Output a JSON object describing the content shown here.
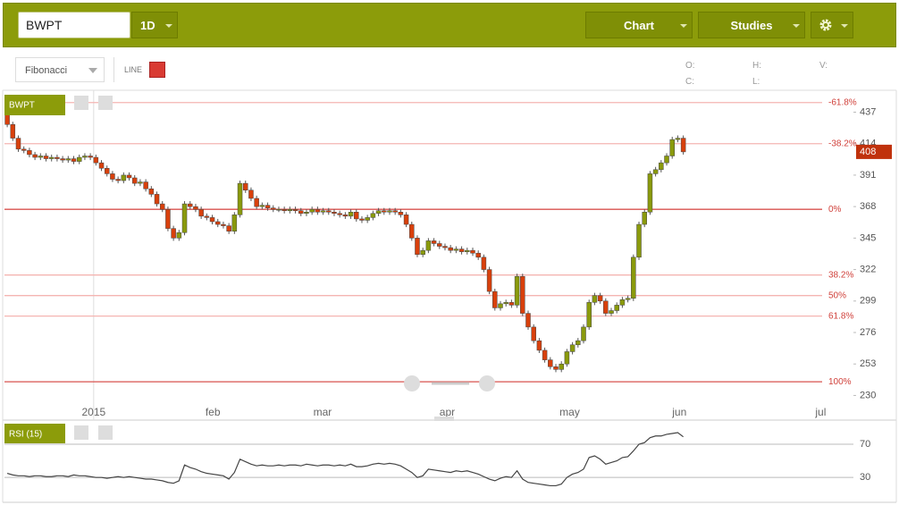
{
  "toolbar": {
    "symbol": "BWPT",
    "interval": "1D",
    "chart": "Chart",
    "studies": "Studies",
    "drawing_tool": "Fibonacci",
    "line_label": "LINE",
    "ohlc_labels": [
      "O:",
      "H:",
      "V:",
      "C:",
      "L:"
    ]
  },
  "chart_data": {
    "type": "candlestick",
    "symbol": "BWPT",
    "xlim": [
      -0.5,
      152.7
    ],
    "xticks": [
      {
        "value": 15.6,
        "label": "2015"
      },
      {
        "value": 37.1,
        "label": "feb"
      },
      {
        "value": 56.9,
        "label": "mar"
      },
      {
        "value": 79.4,
        "label": "apr"
      },
      {
        "value": 101.5,
        "label": "may"
      },
      {
        "value": 121.3,
        "label": "jun"
      },
      {
        "value": 146.8,
        "label": "jul"
      }
    ],
    "ylim": [
      212,
      453
    ],
    "yticks": [
      437,
      414,
      391,
      368,
      345,
      322,
      299,
      276,
      253,
      230
    ],
    "up_color": "#8a9a0c",
    "down_color": "#d8400c",
    "fibonacci": [
      {
        "value": 444,
        "label": "-61.8%"
      },
      {
        "value": 414,
        "label": "-38.2%"
      },
      {
        "value": 366,
        "label": "0%"
      },
      {
        "value": 318,
        "label": "38.2%"
      },
      {
        "value": 303,
        "label": "50%"
      },
      {
        "value": 288,
        "label": "61.8%"
      },
      {
        "value": 240,
        "label": "100%"
      }
    ],
    "open": [
      437,
      428,
      418,
      410,
      409,
      406,
      404,
      405,
      403,
      404,
      403,
      402,
      403,
      401,
      404,
      405,
      404,
      400,
      396,
      392,
      388,
      387,
      391,
      389,
      385,
      386,
      381,
      377,
      370,
      366,
      352,
      345,
      349,
      370,
      368,
      366,
      361,
      360,
      357,
      355,
      354,
      350,
      362,
      385,
      380,
      374,
      368,
      369,
      367,
      366,
      366,
      365,
      366,
      365,
      363,
      364,
      366,
      364,
      365,
      364,
      363,
      362,
      361,
      364,
      359,
      358,
      360,
      363,
      365,
      364,
      365,
      364,
      362,
      355,
      345,
      333,
      336,
      343,
      341,
      339,
      338,
      336,
      337,
      335,
      336,
      334,
      331,
      322,
      306,
      294,
      297,
      298,
      296,
      317,
      290,
      280,
      270,
      263,
      256,
      251,
      249,
      253,
      262,
      267,
      270,
      280,
      298,
      303,
      299,
      290,
      292,
      296,
      300,
      301,
      331,
      355,
      364,
      392,
      395,
      400,
      405,
      417,
      418
    ],
    "high": [
      439,
      430,
      420,
      412,
      411,
      408,
      407,
      407,
      406,
      406,
      405,
      405,
      405,
      406,
      407,
      407,
      406,
      402,
      398,
      394,
      390,
      393,
      393,
      391,
      388,
      388,
      383,
      379,
      372,
      368,
      354,
      351,
      372,
      372,
      370,
      368,
      363,
      362,
      359,
      357,
      356,
      364,
      387,
      387,
      382,
      376,
      371,
      371,
      369,
      368,
      368,
      368,
      368,
      367,
      366,
      368,
      368,
      367,
      367,
      366,
      365,
      364,
      366,
      366,
      361,
      362,
      365,
      367,
      367,
      367,
      367,
      366,
      364,
      357,
      347,
      338,
      345,
      345,
      343,
      341,
      340,
      339,
      339,
      338,
      338,
      336,
      333,
      324,
      308,
      299,
      300,
      300,
      319,
      319,
      292,
      282,
      272,
      265,
      258,
      253,
      255,
      264,
      269,
      272,
      282,
      300,
      305,
      305,
      301,
      294,
      298,
      302,
      303,
      333,
      357,
      366,
      394,
      397,
      402,
      407,
      419,
      420,
      420
    ],
    "low": [
      426,
      416,
      408,
      407,
      404,
      402,
      402,
      401,
      401,
      401,
      400,
      400,
      399,
      399,
      402,
      402,
      398,
      394,
      390,
      386,
      385,
      385,
      387,
      383,
      383,
      379,
      375,
      368,
      364,
      350,
      343,
      343,
      347,
      366,
      364,
      359,
      358,
      355,
      353,
      352,
      348,
      348,
      360,
      378,
      372,
      366,
      366,
      365,
      364,
      364,
      363,
      363,
      363,
      361,
      361,
      362,
      362,
      362,
      362,
      361,
      360,
      359,
      359,
      357,
      356,
      356,
      358,
      361,
      362,
      362,
      362,
      360,
      353,
      343,
      331,
      331,
      334,
      339,
      337,
      336,
      334,
      334,
      333,
      333,
      332,
      329,
      320,
      304,
      292,
      292,
      295,
      294,
      294,
      288,
      278,
      268,
      261,
      254,
      249,
      247,
      247,
      251,
      260,
      265,
      268,
      278,
      296,
      297,
      288,
      288,
      290,
      294,
      298,
      299,
      329,
      353,
      362,
      390,
      393,
      398,
      403,
      415,
      406
    ],
    "close": [
      428,
      418,
      410,
      409,
      406,
      404,
      405,
      403,
      404,
      403,
      402,
      403,
      401,
      404,
      405,
      404,
      400,
      396,
      392,
      388,
      387,
      391,
      389,
      385,
      386,
      381,
      377,
      370,
      366,
      352,
      345,
      349,
      370,
      368,
      366,
      361,
      360,
      357,
      355,
      354,
      350,
      362,
      385,
      380,
      374,
      368,
      369,
      367,
      366,
      366,
      365,
      366,
      365,
      363,
      364,
      366,
      364,
      365,
      364,
      363,
      362,
      361,
      364,
      359,
      358,
      360,
      363,
      365,
      364,
      365,
      364,
      362,
      355,
      345,
      333,
      336,
      343,
      341,
      339,
      338,
      336,
      337,
      335,
      336,
      334,
      331,
      322,
      306,
      294,
      297,
      298,
      296,
      317,
      290,
      280,
      270,
      263,
      256,
      251,
      249,
      253,
      262,
      267,
      270,
      280,
      298,
      303,
      299,
      290,
      292,
      296,
      300,
      301,
      331,
      355,
      364,
      392,
      395,
      400,
      405,
      417,
      418,
      408
    ],
    "indicator": {
      "type": "line",
      "name": "RSI (15)",
      "color": "#444444",
      "ylim": [
        0,
        97
      ],
      "yticks": [
        70,
        30
      ],
      "values": [
        35,
        33,
        32,
        32,
        31,
        32,
        32,
        31,
        31,
        32,
        32,
        31,
        33,
        32,
        32,
        31,
        30,
        30,
        29,
        30,
        31,
        30,
        31,
        30,
        29,
        28,
        28,
        27,
        26,
        24,
        23,
        26,
        45,
        42,
        40,
        37,
        35,
        34,
        33,
        32,
        28,
        36,
        52,
        49,
        46,
        44,
        45,
        44,
        44,
        45,
        44,
        45,
        45,
        44,
        46,
        45,
        44,
        45,
        45,
        44,
        45,
        44,
        46,
        43,
        43,
        44,
        46,
        47,
        46,
        47,
        46,
        44,
        40,
        36,
        30,
        32,
        40,
        39,
        38,
        37,
        36,
        38,
        37,
        38,
        36,
        34,
        31,
        28,
        26,
        29,
        31,
        30,
        38,
        28,
        24,
        23,
        22,
        21,
        20,
        20,
        22,
        30,
        34,
        36,
        40,
        54,
        56,
        52,
        46,
        48,
        50,
        54,
        55,
        62,
        70,
        72,
        78,
        80,
        80,
        82,
        83,
        84,
        79
      ]
    }
  }
}
